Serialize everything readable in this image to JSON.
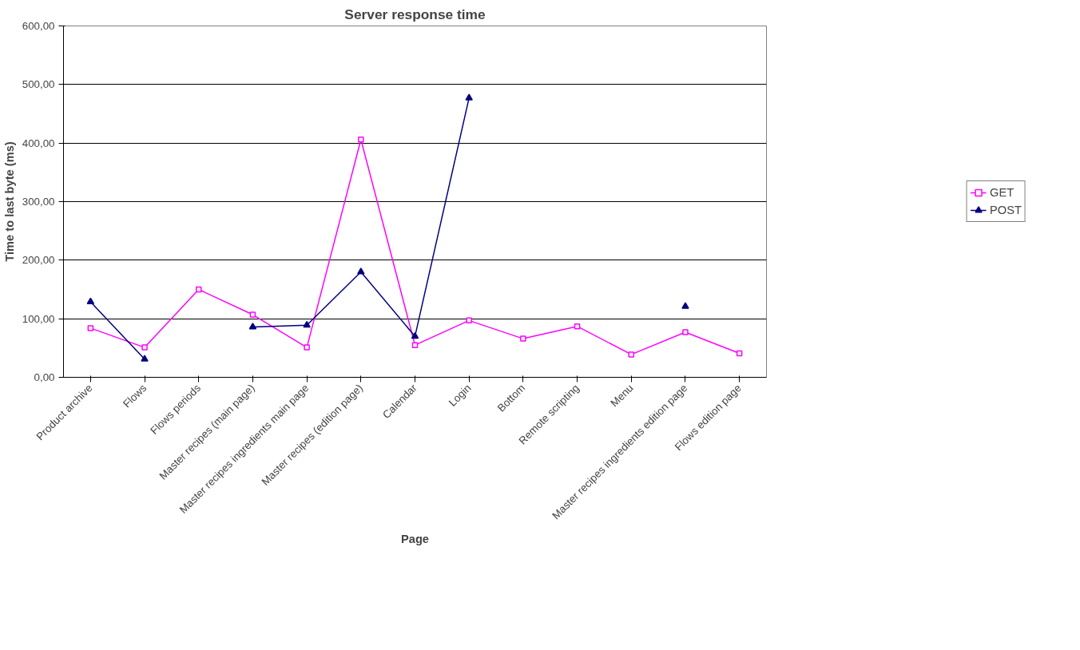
{
  "chart_data": {
    "type": "line",
    "title": "Server response time",
    "xlabel": "Page",
    "ylabel": "Time to last byte (ms)",
    "categories": [
      "Product archive",
      "Flows",
      "Flows periods",
      "Master recipes (main page)",
      "Master recipes ingredients main page",
      "Master recipes (edition page)",
      "Calendar",
      "Login",
      "Bottom",
      "Remote scripting",
      "Menu",
      "Master recipes ingredients edition page",
      "Flows edition page"
    ],
    "series": [
      {
        "name": "GET",
        "color": "#ff00ff",
        "marker": "square",
        "values": [
          84,
          51,
          150,
          107,
          51,
          406,
          55,
          97,
          66,
          87,
          39,
          77,
          41
        ]
      },
      {
        "name": "POST",
        "color": "#000080",
        "marker": "triangle",
        "values": [
          129,
          31,
          null,
          86,
          89,
          180,
          70,
          477,
          null,
          null,
          null,
          121,
          null
        ]
      }
    ],
    "ylim": [
      0,
      600
    ],
    "yticks": [
      {
        "value": 0,
        "label": "0,00"
      },
      {
        "value": 100,
        "label": "100,00"
      },
      {
        "value": 200,
        "label": "200,00"
      },
      {
        "value": 300,
        "label": "300,00"
      },
      {
        "value": 400,
        "label": "400,00"
      },
      {
        "value": 500,
        "label": "500,00"
      },
      {
        "value": 600,
        "label": "600,00"
      }
    ],
    "grid": "y",
    "legend": "right"
  }
}
